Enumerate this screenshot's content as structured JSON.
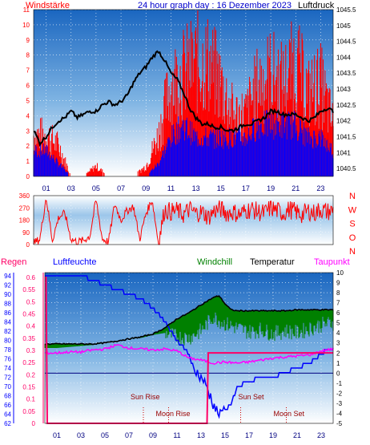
{
  "page_title": "24 hour graph day : 16 Dezember 2023",
  "colors": {
    "wind": "#ff0000",
    "direction": "#0000ff",
    "pressure": "#000000",
    "humidity": "#0000ff",
    "windchill": "#008000",
    "temperature": "#000000",
    "dewpoint": "#ff00ff",
    "rain": "#ff0066",
    "sky_top": "#1a66c0",
    "sky_bottom": "#ffffff"
  },
  "chart_data": [
    {
      "id": "wind-pressure",
      "type": "line",
      "title": "24 hour graph day : 16 Dezember 2023",
      "left_label": "Windstärke",
      "right_label": "Luftdruck",
      "x_ticks": [
        "01",
        "03",
        "05",
        "07",
        "09",
        "11",
        "13",
        "15",
        "17",
        "19",
        "21",
        "23"
      ],
      "ylim_left": [
        0,
        11
      ],
      "yticks_left": [
        "0",
        "1",
        "2",
        "3",
        "4",
        "5",
        "6",
        "7",
        "8",
        "9",
        "10",
        "11"
      ],
      "ylim_right": [
        1040.25,
        1045.5
      ],
      "yticks_right": [
        "1040.5",
        "1041",
        "1041.5",
        "1042",
        "1042.5",
        "1043",
        "1043.5",
        "1044",
        "1044.5",
        "1045",
        "1045.5"
      ],
      "series": [
        {
          "name": "Luftdruck",
          "x": [
            0,
            0.5,
            1,
            1.5,
            2,
            2.5,
            3,
            3.5,
            4,
            4.5,
            5,
            5.5,
            6,
            6.5,
            7,
            7.5,
            8,
            8.5,
            9,
            9.5,
            10,
            10.5,
            11,
            11.5,
            12,
            12.5,
            13,
            13.5,
            14,
            14.5,
            15,
            15.5,
            16,
            16.5,
            17,
            17.5,
            18,
            18.5,
            19,
            19.5,
            20,
            20.5,
            21,
            21.5,
            22,
            22.5,
            23,
            23.5,
            24
          ],
          "values": [
            1041.7,
            1041.3,
            1041.5,
            1041.8,
            1042.0,
            1042.1,
            1042.3,
            1042.1,
            1042.2,
            1042.3,
            1042.3,
            1042.5,
            1042.6,
            1042.5,
            1042.6,
            1042.8,
            1043.2,
            1043.5,
            1043.7,
            1044.0,
            1044.2,
            1043.9,
            1043.5,
            1043.3,
            1042.9,
            1042.4,
            1042.1,
            1041.9,
            1041.9,
            1041.8,
            1041.8,
            1041.7,
            1041.7,
            1041.8,
            1041.9,
            1041.9,
            1042.0,
            1042.1,
            1042.3,
            1042.3,
            1042.2,
            1042.2,
            1042.2,
            1042.1,
            1042.0,
            1042.1,
            1042.3,
            1042.4,
            1042.3
          ]
        },
        {
          "name": "Windstärke (Mittel)",
          "x": [
            0,
            1,
            2,
            3,
            4,
            5,
            6,
            7,
            8,
            9,
            10,
            11,
            12,
            13,
            14,
            15,
            16,
            17,
            18,
            19,
            20,
            21,
            22,
            23,
            24
          ],
          "values": [
            2,
            2,
            1,
            0,
            0,
            0,
            0,
            0,
            0,
            0,
            1,
            3,
            4,
            3,
            3,
            3,
            3,
            3,
            4,
            4,
            4,
            4,
            3,
            3,
            2
          ]
        },
        {
          "name": "Windstärke (Böen)",
          "x": [
            0,
            1,
            2,
            3,
            4,
            5,
            6,
            7,
            8,
            9,
            10,
            11,
            12,
            13,
            14,
            15,
            16,
            17,
            18,
            19,
            20,
            21,
            22,
            23,
            24
          ],
          "values": [
            4,
            4,
            3,
            0,
            0,
            1,
            0,
            0,
            0,
            1,
            4,
            9,
            10,
            11,
            11,
            9,
            6,
            6,
            9,
            10,
            9,
            11,
            8,
            9,
            5
          ]
        }
      ]
    },
    {
      "id": "wind-direction",
      "type": "line",
      "left_label": "",
      "right_labels": [
        "N",
        "W",
        "S",
        "O",
        "N"
      ],
      "ylim_left": [
        0,
        360
      ],
      "yticks_left": [
        "0",
        "90",
        "180",
        "270",
        "360"
      ],
      "series": [
        {
          "name": "Windrichtung",
          "x": [
            0,
            0.5,
            1,
            1.5,
            2,
            2.5,
            3,
            3.5,
            4,
            4.5,
            5,
            5.5,
            6,
            6.5,
            7,
            7.5,
            8,
            8.5,
            9,
            9.5,
            10,
            10.5,
            11,
            11.5,
            12,
            12.5,
            13,
            13.5,
            14,
            14.5,
            15,
            15.5,
            16,
            16.5,
            17,
            17.5,
            18,
            18.5,
            19,
            19.5,
            20,
            20.5,
            21,
            21.5,
            22,
            22.5,
            23,
            23.5,
            24
          ],
          "values": [
            10,
            40,
            350,
            30,
            200,
            230,
            40,
            20,
            30,
            60,
            330,
            40,
            20,
            300,
            180,
            250,
            280,
            40,
            230,
            330,
            10,
            260,
            240,
            250,
            220,
            260,
            230,
            240,
            200,
            250,
            260,
            230,
            240,
            220,
            250,
            260,
            240,
            230,
            270,
            250,
            230,
            260,
            240,
            220,
            250,
            230,
            260,
            240,
            250
          ]
        }
      ]
    },
    {
      "id": "humidity-temperature",
      "type": "line",
      "header_labels": {
        "rain": "Regen",
        "humidity": "Luftfeuchte",
        "windchill": "Windchill",
        "temperature": "Temperatur",
        "dewpoint": "Taupunkt"
      },
      "yticks_humidity": [
        "62",
        "64",
        "66",
        "68",
        "70",
        "72",
        "74",
        "76",
        "78",
        "80",
        "82",
        "84",
        "86",
        "88",
        "90",
        "92",
        "94"
      ],
      "yticks_rain": [
        "0",
        "0.05",
        "0.1",
        "0.15",
        "0.2",
        "0.25",
        "0.3",
        "0.35",
        "0.4",
        "0.45",
        "0.5",
        "0.55",
        "0.6"
      ],
      "yticks_temp": [
        "-5",
        "-4",
        "-3",
        "-2",
        "-1",
        "0",
        "1",
        "2",
        "3",
        "4",
        "5",
        "6",
        "7",
        "8",
        "9",
        "10"
      ],
      "ylim_humidity": [
        62,
        94.7
      ],
      "ylim_rain": [
        0,
        0.62
      ],
      "ylim_temp": [
        -5,
        10
      ],
      "events": [
        {
          "label": "Sun Rise",
          "hour": 8.2
        },
        {
          "label": "Moon Rise",
          "hour": 10.3
        },
        {
          "label": "Sun Set",
          "hour": 16.3
        },
        {
          "label": "Moon Set",
          "hour": 20.1
        }
      ],
      "series": [
        {
          "name": "Luftfeuchte",
          "x": [
            0,
            1,
            2,
            3,
            4,
            5,
            6,
            7,
            8,
            9,
            10,
            11,
            12,
            12.5,
            13,
            13.5,
            14,
            14.5,
            15,
            15.5,
            16,
            17,
            18,
            19,
            20,
            21,
            22,
            23,
            23.5,
            24
          ],
          "values": [
            94,
            94,
            94,
            94,
            93,
            92,
            91,
            90,
            89,
            87,
            84,
            80,
            77,
            73,
            72,
            70,
            66,
            64,
            65,
            66,
            70,
            71,
            72,
            72,
            73,
            74,
            75,
            77,
            78,
            78
          ]
        },
        {
          "name": "Temperatur",
          "x": [
            0,
            1,
            2,
            3,
            4,
            5,
            6,
            7,
            8,
            9,
            10,
            11,
            12,
            13,
            14,
            14.5,
            15,
            15.5,
            16,
            17,
            18,
            19,
            20,
            21,
            22,
            23,
            24
          ],
          "values": [
            2.9,
            2.9,
            2.9,
            2.9,
            2.9,
            3.0,
            3.2,
            3.4,
            3.6,
            3.9,
            4.5,
            5.4,
            6.0,
            6.8,
            7.5,
            7.7,
            6.9,
            6.3,
            6.2,
            6.2,
            6.2,
            6.2,
            6.2,
            6.3,
            6.3,
            6.3,
            6.3
          ]
        },
        {
          "name": "Windchill",
          "x": [
            0,
            1,
            2,
            3,
            4,
            5,
            6,
            7,
            8,
            9,
            10,
            11,
            12,
            13,
            14,
            15,
            16,
            17,
            18,
            19,
            20,
            21,
            22,
            23,
            24
          ],
          "values": [
            2.5,
            2.5,
            2.6,
            2.7,
            2.8,
            3.0,
            3.2,
            3.4,
            3.5,
            3.8,
            4.0,
            3.6,
            3.5,
            4.2,
            5.6,
            4.9,
            4.5,
            4.1,
            4.3,
            3.9,
            4.2,
            4.0,
            4.4,
            4.8,
            5.0
          ]
        },
        {
          "name": "Taupunkt",
          "x": [
            0,
            1,
            2,
            3,
            4,
            5,
            6,
            7,
            8,
            9,
            10,
            11,
            12,
            13,
            14,
            15,
            16,
            17,
            18,
            19,
            20,
            21,
            22,
            23,
            24
          ],
          "values": [
            2.0,
            2.0,
            2.1,
            2.1,
            2.3,
            2.4,
            2.8,
            2.5,
            2.4,
            2.3,
            2.4,
            2.2,
            1.5,
            1.3,
            1.0,
            1.1,
            1.0,
            1.1,
            1.3,
            1.5,
            1.6,
            1.7,
            1.8,
            2.2,
            2.4
          ]
        },
        {
          "name": "Regen",
          "x": [
            0,
            0.1,
            0.2,
            13.5,
            13.6,
            24
          ],
          "values": [
            0.6,
            0.6,
            0.0,
            0.0,
            0.29,
            0.29
          ]
        }
      ]
    }
  ]
}
